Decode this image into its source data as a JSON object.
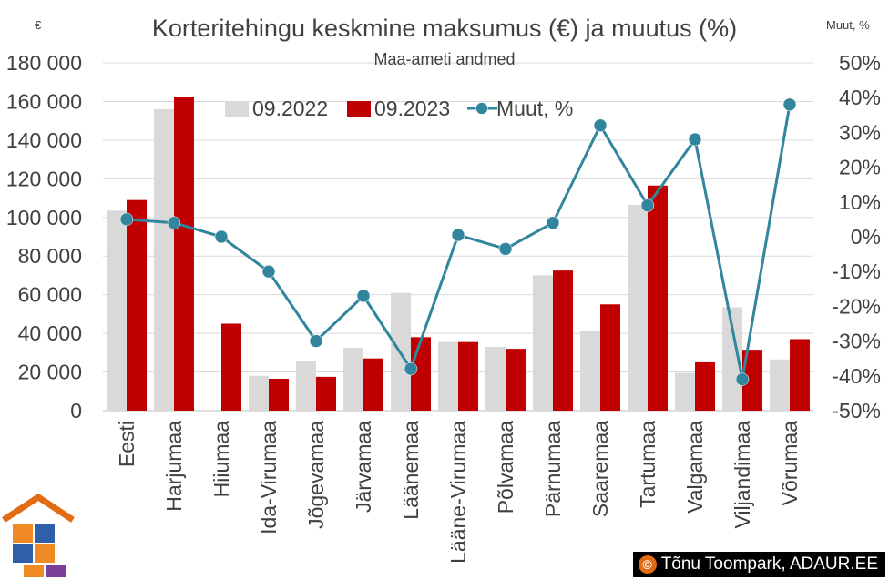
{
  "chart_data": {
    "type": "bar",
    "title": "Korteritehingu keskmine maksumus (€) ja muutus (%)",
    "subtitle": "Maa-ameti andmed",
    "ylabel": "€",
    "y2label": "Muut, %",
    "ylim": [
      0,
      180000
    ],
    "y2lim": [
      -50,
      50
    ],
    "yticks": [
      "0",
      "20 000",
      "40 000",
      "60 000",
      "80 000",
      "100 000",
      "120 000",
      "140 000",
      "160 000",
      "180 000"
    ],
    "y2ticks": [
      "-50%",
      "-40%",
      "-30%",
      "-20%",
      "-10%",
      "0%",
      "10%",
      "20%",
      "30%",
      "40%",
      "50%"
    ],
    "categories": [
      "Eesti",
      "Harjumaa",
      "Hiiumaa",
      "Ida-Virumaa",
      "Jõgevamaa",
      "Järvamaa",
      "Läänemaa",
      "Lääne-Virumaa",
      "Põlvamaa",
      "Pärnumaa",
      "Saaremaa",
      "Tartumaa",
      "Valgamaa",
      "Viljandimaa",
      "Võrumaa"
    ],
    "series": [
      {
        "name": "09.2022",
        "type": "bar",
        "axis": "left",
        "color": "#d9d9d9",
        "values": [
          103500,
          156000,
          0,
          18000,
          25500,
          32500,
          61000,
          35500,
          33000,
          70000,
          41500,
          106500,
          19500,
          53500,
          26500
        ]
      },
      {
        "name": "09.2023",
        "type": "bar",
        "axis": "left",
        "color": "#c00000",
        "values": [
          109000,
          162500,
          45000,
          16500,
          17500,
          27000,
          38000,
          35500,
          32000,
          72500,
          55000,
          116500,
          25000,
          31500,
          37000
        ]
      },
      {
        "name": "Muut, %",
        "type": "line",
        "axis": "right",
        "color": "#31859c",
        "values": [
          5,
          4,
          0,
          -10,
          -30,
          -17,
          -38,
          0.5,
          -3.5,
          4,
          32,
          9,
          28,
          -41,
          38
        ]
      }
    ],
    "legend": "top-center",
    "grid": true
  },
  "credit": {
    "symbol": "©",
    "text": "Tõnu Toompark, ADAUR.EE"
  },
  "colors": {
    "logo_roof": "#e26c14",
    "logo_piece_orange": "#f08a24",
    "logo_piece_blue": "#2e5fa8",
    "logo_piece_purple": "#7b3f98"
  }
}
